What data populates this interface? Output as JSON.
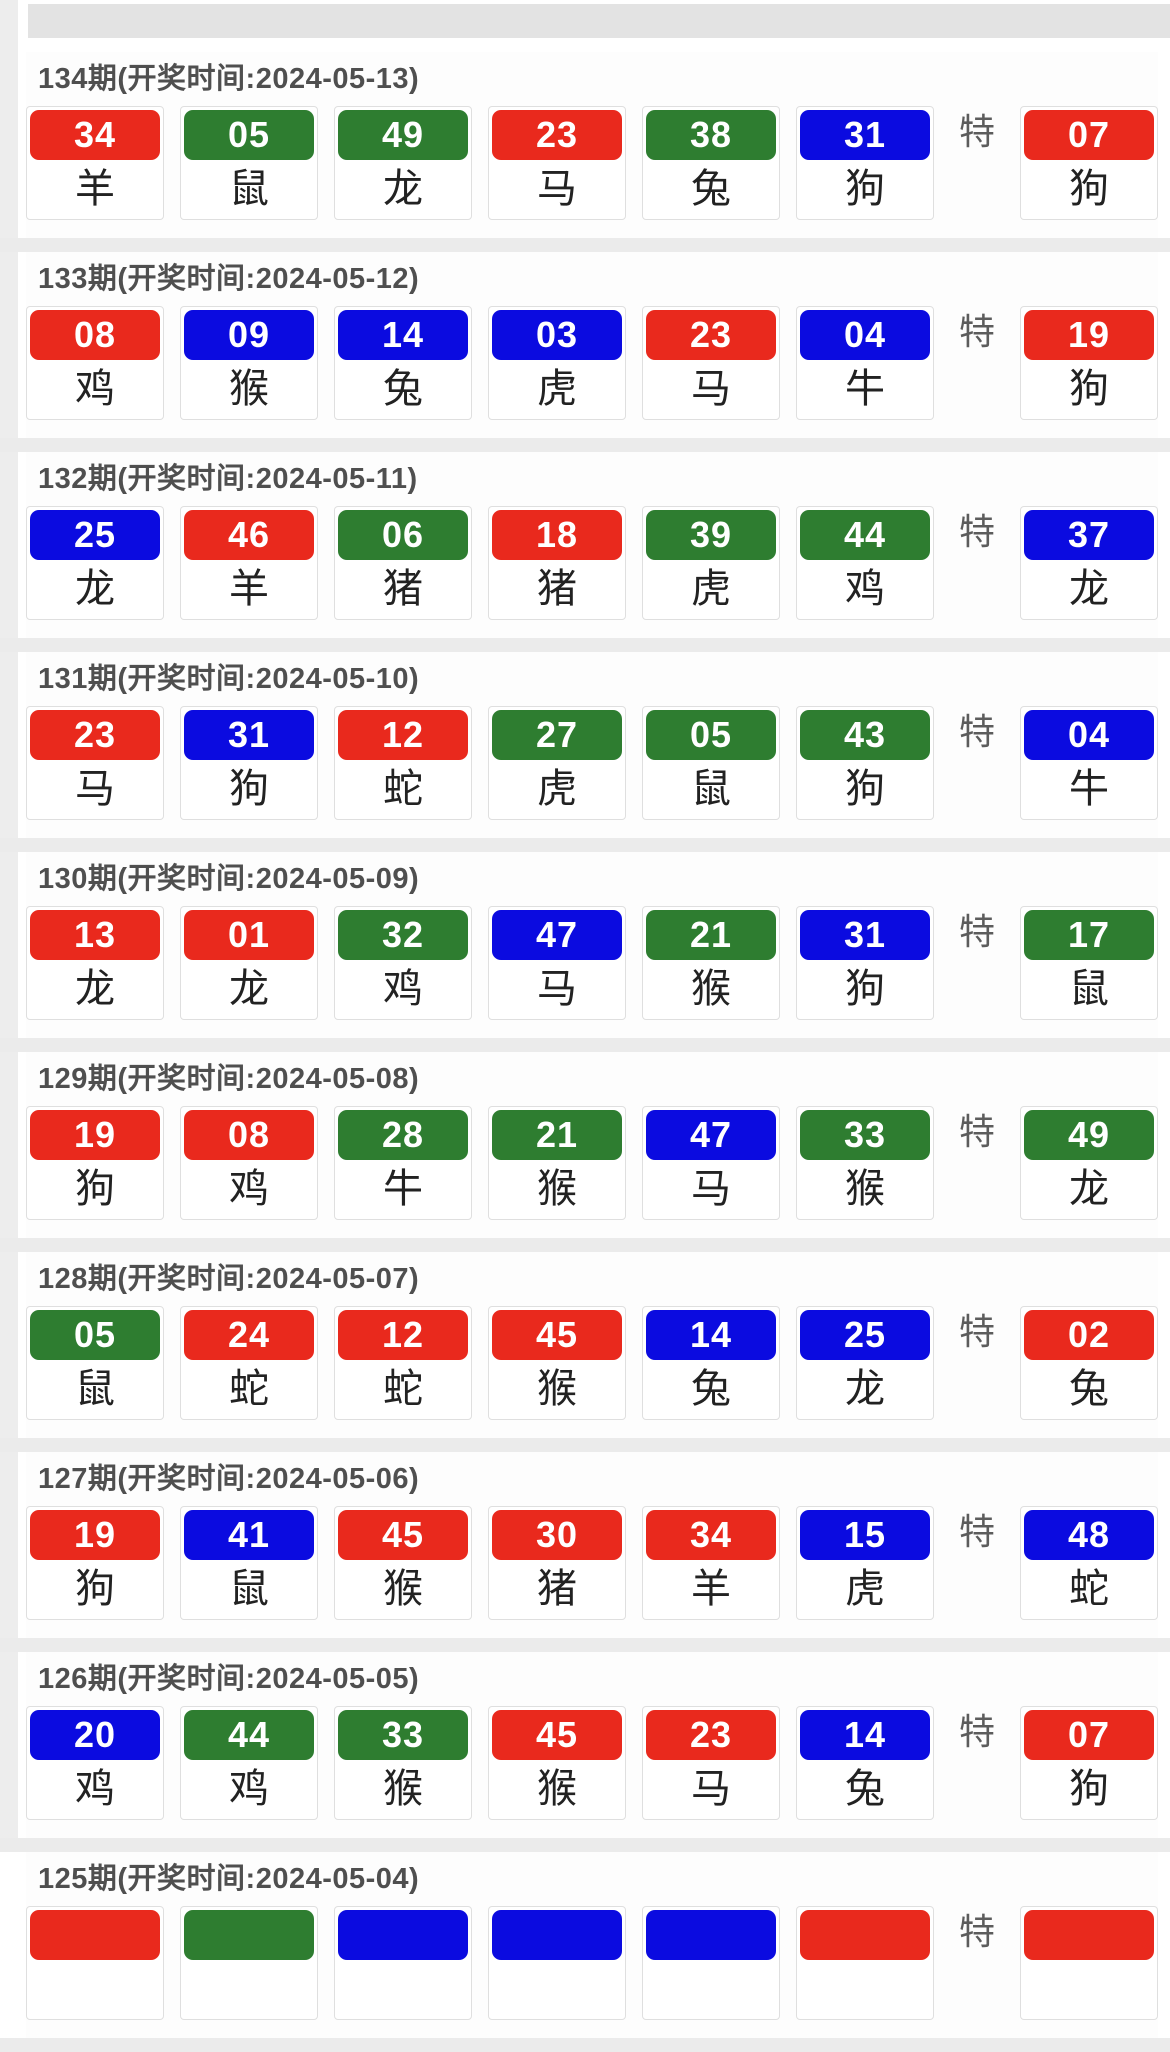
{
  "page": {
    "special_label": "特",
    "colors": {
      "red": "#e9291d",
      "green": "#2e7d30",
      "blue": "#0b0be0"
    }
  },
  "draws": [
    {
      "period": "134",
      "header": "134期(开奖时间:2024-05-13)",
      "numbers": [
        {
          "value": "34",
          "color": "red",
          "zodiac": "羊"
        },
        {
          "value": "05",
          "color": "green",
          "zodiac": "鼠"
        },
        {
          "value": "49",
          "color": "green",
          "zodiac": "龙"
        },
        {
          "value": "23",
          "color": "red",
          "zodiac": "马"
        },
        {
          "value": "38",
          "color": "green",
          "zodiac": "兔"
        },
        {
          "value": "31",
          "color": "blue",
          "zodiac": "狗"
        }
      ],
      "special": {
        "value": "07",
        "color": "red",
        "zodiac": "狗"
      }
    },
    {
      "period": "133",
      "header": "133期(开奖时间:2024-05-12)",
      "numbers": [
        {
          "value": "08",
          "color": "red",
          "zodiac": "鸡"
        },
        {
          "value": "09",
          "color": "blue",
          "zodiac": "猴"
        },
        {
          "value": "14",
          "color": "blue",
          "zodiac": "兔"
        },
        {
          "value": "03",
          "color": "blue",
          "zodiac": "虎"
        },
        {
          "value": "23",
          "color": "red",
          "zodiac": "马"
        },
        {
          "value": "04",
          "color": "blue",
          "zodiac": "牛"
        }
      ],
      "special": {
        "value": "19",
        "color": "red",
        "zodiac": "狗"
      }
    },
    {
      "period": "132",
      "header": "132期(开奖时间:2024-05-11)",
      "numbers": [
        {
          "value": "25",
          "color": "blue",
          "zodiac": "龙"
        },
        {
          "value": "46",
          "color": "red",
          "zodiac": "羊"
        },
        {
          "value": "06",
          "color": "green",
          "zodiac": "猪"
        },
        {
          "value": "18",
          "color": "red",
          "zodiac": "猪"
        },
        {
          "value": "39",
          "color": "green",
          "zodiac": "虎"
        },
        {
          "value": "44",
          "color": "green",
          "zodiac": "鸡"
        }
      ],
      "special": {
        "value": "37",
        "color": "blue",
        "zodiac": "龙"
      }
    },
    {
      "period": "131",
      "header": "131期(开奖时间:2024-05-10)",
      "numbers": [
        {
          "value": "23",
          "color": "red",
          "zodiac": "马"
        },
        {
          "value": "31",
          "color": "blue",
          "zodiac": "狗"
        },
        {
          "value": "12",
          "color": "red",
          "zodiac": "蛇"
        },
        {
          "value": "27",
          "color": "green",
          "zodiac": "虎"
        },
        {
          "value": "05",
          "color": "green",
          "zodiac": "鼠"
        },
        {
          "value": "43",
          "color": "green",
          "zodiac": "狗"
        }
      ],
      "special": {
        "value": "04",
        "color": "blue",
        "zodiac": "牛"
      }
    },
    {
      "period": "130",
      "header": "130期(开奖时间:2024-05-09)",
      "numbers": [
        {
          "value": "13",
          "color": "red",
          "zodiac": "龙"
        },
        {
          "value": "01",
          "color": "red",
          "zodiac": "龙"
        },
        {
          "value": "32",
          "color": "green",
          "zodiac": "鸡"
        },
        {
          "value": "47",
          "color": "blue",
          "zodiac": "马"
        },
        {
          "value": "21",
          "color": "green",
          "zodiac": "猴"
        },
        {
          "value": "31",
          "color": "blue",
          "zodiac": "狗"
        }
      ],
      "special": {
        "value": "17",
        "color": "green",
        "zodiac": "鼠"
      }
    },
    {
      "period": "129",
      "header": "129期(开奖时间:2024-05-08)",
      "numbers": [
        {
          "value": "19",
          "color": "red",
          "zodiac": "狗"
        },
        {
          "value": "08",
          "color": "red",
          "zodiac": "鸡"
        },
        {
          "value": "28",
          "color": "green",
          "zodiac": "牛"
        },
        {
          "value": "21",
          "color": "green",
          "zodiac": "猴"
        },
        {
          "value": "47",
          "color": "blue",
          "zodiac": "马"
        },
        {
          "value": "33",
          "color": "green",
          "zodiac": "猴"
        }
      ],
      "special": {
        "value": "49",
        "color": "green",
        "zodiac": "龙"
      }
    },
    {
      "period": "128",
      "header": "128期(开奖时间:2024-05-07)",
      "numbers": [
        {
          "value": "05",
          "color": "green",
          "zodiac": "鼠"
        },
        {
          "value": "24",
          "color": "red",
          "zodiac": "蛇"
        },
        {
          "value": "12",
          "color": "red",
          "zodiac": "蛇"
        },
        {
          "value": "45",
          "color": "red",
          "zodiac": "猴"
        },
        {
          "value": "14",
          "color": "blue",
          "zodiac": "兔"
        },
        {
          "value": "25",
          "color": "blue",
          "zodiac": "龙"
        }
      ],
      "special": {
        "value": "02",
        "color": "red",
        "zodiac": "兔"
      }
    },
    {
      "period": "127",
      "header": "127期(开奖时间:2024-05-06)",
      "numbers": [
        {
          "value": "19",
          "color": "red",
          "zodiac": "狗"
        },
        {
          "value": "41",
          "color": "blue",
          "zodiac": "鼠"
        },
        {
          "value": "45",
          "color": "red",
          "zodiac": "猴"
        },
        {
          "value": "30",
          "color": "red",
          "zodiac": "猪"
        },
        {
          "value": "34",
          "color": "red",
          "zodiac": "羊"
        },
        {
          "value": "15",
          "color": "blue",
          "zodiac": "虎"
        }
      ],
      "special": {
        "value": "48",
        "color": "blue",
        "zodiac": "蛇"
      }
    },
    {
      "period": "126",
      "header": "126期(开奖时间:2024-05-05)",
      "numbers": [
        {
          "value": "20",
          "color": "blue",
          "zodiac": "鸡"
        },
        {
          "value": "44",
          "color": "green",
          "zodiac": "鸡"
        },
        {
          "value": "33",
          "color": "green",
          "zodiac": "猴"
        },
        {
          "value": "45",
          "color": "red",
          "zodiac": "猴"
        },
        {
          "value": "23",
          "color": "red",
          "zodiac": "马"
        },
        {
          "value": "14",
          "color": "blue",
          "zodiac": "兔"
        }
      ],
      "special": {
        "value": "07",
        "color": "red",
        "zodiac": "狗"
      }
    },
    {
      "period": "125",
      "header": "125期(开奖时间:2024-05-04)",
      "partial": true,
      "numbers": [
        {
          "value": "",
          "color": "red",
          "zodiac": ""
        },
        {
          "value": "",
          "color": "green",
          "zodiac": ""
        },
        {
          "value": "",
          "color": "blue",
          "zodiac": ""
        },
        {
          "value": "",
          "color": "blue",
          "zodiac": ""
        },
        {
          "value": "",
          "color": "blue",
          "zodiac": ""
        },
        {
          "value": "",
          "color": "red",
          "zodiac": ""
        }
      ],
      "special": {
        "value": "",
        "color": "red",
        "zodiac": ""
      }
    }
  ]
}
